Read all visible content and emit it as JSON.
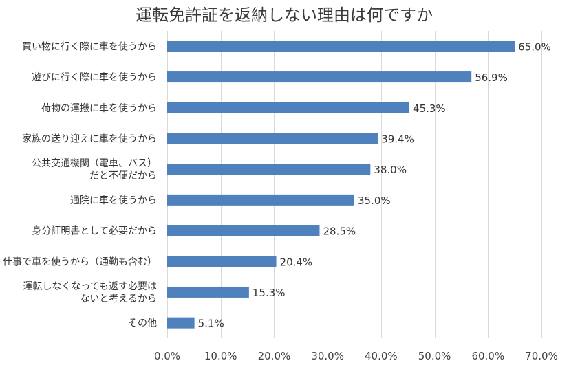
{
  "chart_data": {
    "type": "bar",
    "orientation": "horizontal",
    "title": "運転免許証を返納しない理由は何ですか",
    "categories": [
      [
        "買い物に行く際に車を使うから"
      ],
      [
        "遊びに行く際に車を使うから"
      ],
      [
        "荷物の運搬に車を使うから"
      ],
      [
        "家族の送り迎えに車を使うから"
      ],
      [
        "公共交通機関（電車、バス）",
        "だと不便だから"
      ],
      [
        "通院に車を使うから"
      ],
      [
        "身分証明書として必要だから"
      ],
      [
        "仕事で車を使うから（通勤も含む）"
      ],
      [
        "運転しなくなっても返す必要は",
        "ないと考えるから"
      ],
      [
        "その他"
      ]
    ],
    "values": [
      65.0,
      56.9,
      45.3,
      39.4,
      38.0,
      35.0,
      28.5,
      20.4,
      15.3,
      5.1
    ],
    "value_labels": [
      "65.0%",
      "56.9%",
      "45.3%",
      "39.4%",
      "38.0%",
      "35.0%",
      "28.5%",
      "20.4%",
      "15.3%",
      "5.1%"
    ],
    "xlim": [
      0,
      70
    ],
    "x_ticks": [
      0,
      10,
      20,
      30,
      40,
      50,
      60,
      70
    ],
    "x_tick_labels": [
      "0.0%",
      "10.0%",
      "20.0%",
      "30.0%",
      "40.0%",
      "50.0%",
      "60.0%",
      "70.0%"
    ],
    "grid": true,
    "legend": "none",
    "bar_color": "#4f81bd"
  }
}
